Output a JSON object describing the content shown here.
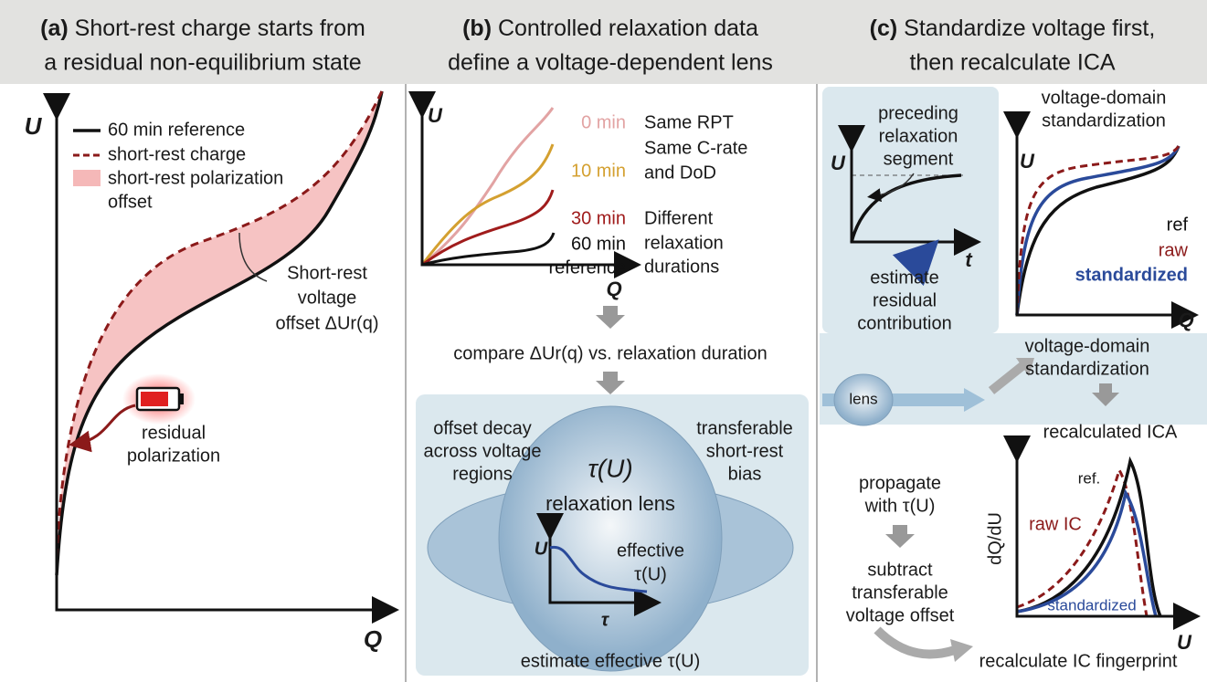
{
  "panel_a": {
    "label": "(a)",
    "title": [
      "Short-rest charge starts from",
      "a residual non-equilibrium state"
    ],
    "y_axis": "U",
    "x_axis": "Q",
    "legend": [
      "60 min reference",
      "short-rest charge",
      "short-rest polarization",
      "offset"
    ],
    "offset_label": [
      "Short-rest",
      "voltage",
      "offset ΔUr(q)"
    ],
    "battery_label": [
      "residual",
      "polarization"
    ]
  },
  "panel_b": {
    "label": "(b)",
    "title": [
      "Controlled relaxation data",
      "define a voltage-dependent lens"
    ],
    "y_axis": "U",
    "x_axis": "Q",
    "curve_labels": [
      "0 min",
      "10 min",
      "30 min",
      "60 min",
      "reference"
    ],
    "notes": [
      "Same RPT",
      "Same C-rate",
      "and DoD",
      "Different",
      "relaxation",
      "durations"
    ],
    "compare": "compare ΔUr(q) vs. relaxation duration",
    "left_note": [
      "offset decay",
      "across voltage",
      "regions"
    ],
    "right_note": [
      "transferable",
      "short-rest",
      "bias"
    ],
    "lens_title": "τ(U)",
    "lens_label": "relaxation lens",
    "inset_y": "U",
    "inset_x": "τ",
    "inset_label": [
      "effective",
      "τ(U)"
    ],
    "bottom": "estimate effective τ(U)"
  },
  "panel_c": {
    "label": "(c)",
    "title": [
      "Standardize voltage first,",
      "then recalculate ICA"
    ],
    "relax_inset": {
      "label": [
        "preceding",
        "relaxation",
        "segment"
      ],
      "y_axis": "U",
      "x_axis": "t"
    },
    "estimate": [
      "estimate",
      "residual",
      "contribution"
    ],
    "std_inset": {
      "title": [
        "voltage-domain",
        "standardization"
      ],
      "y_axis": "U",
      "x_axis": "Q",
      "legend": [
        "ref",
        "raw",
        "standardized"
      ]
    },
    "lens": "lens",
    "middle": [
      "voltage-domain",
      "standardization"
    ],
    "propagate": [
      "propagate",
      "with τ(U)"
    ],
    "subtract": [
      "subtract",
      "transferable",
      "voltage offset"
    ],
    "ica": {
      "title": "recalculated ICA",
      "y_axis": "dQ/dU",
      "x_axis": "U",
      "labels": [
        "ref.",
        "raw IC",
        "standardized"
      ]
    },
    "final": "recalculate IC fingerprint"
  }
}
